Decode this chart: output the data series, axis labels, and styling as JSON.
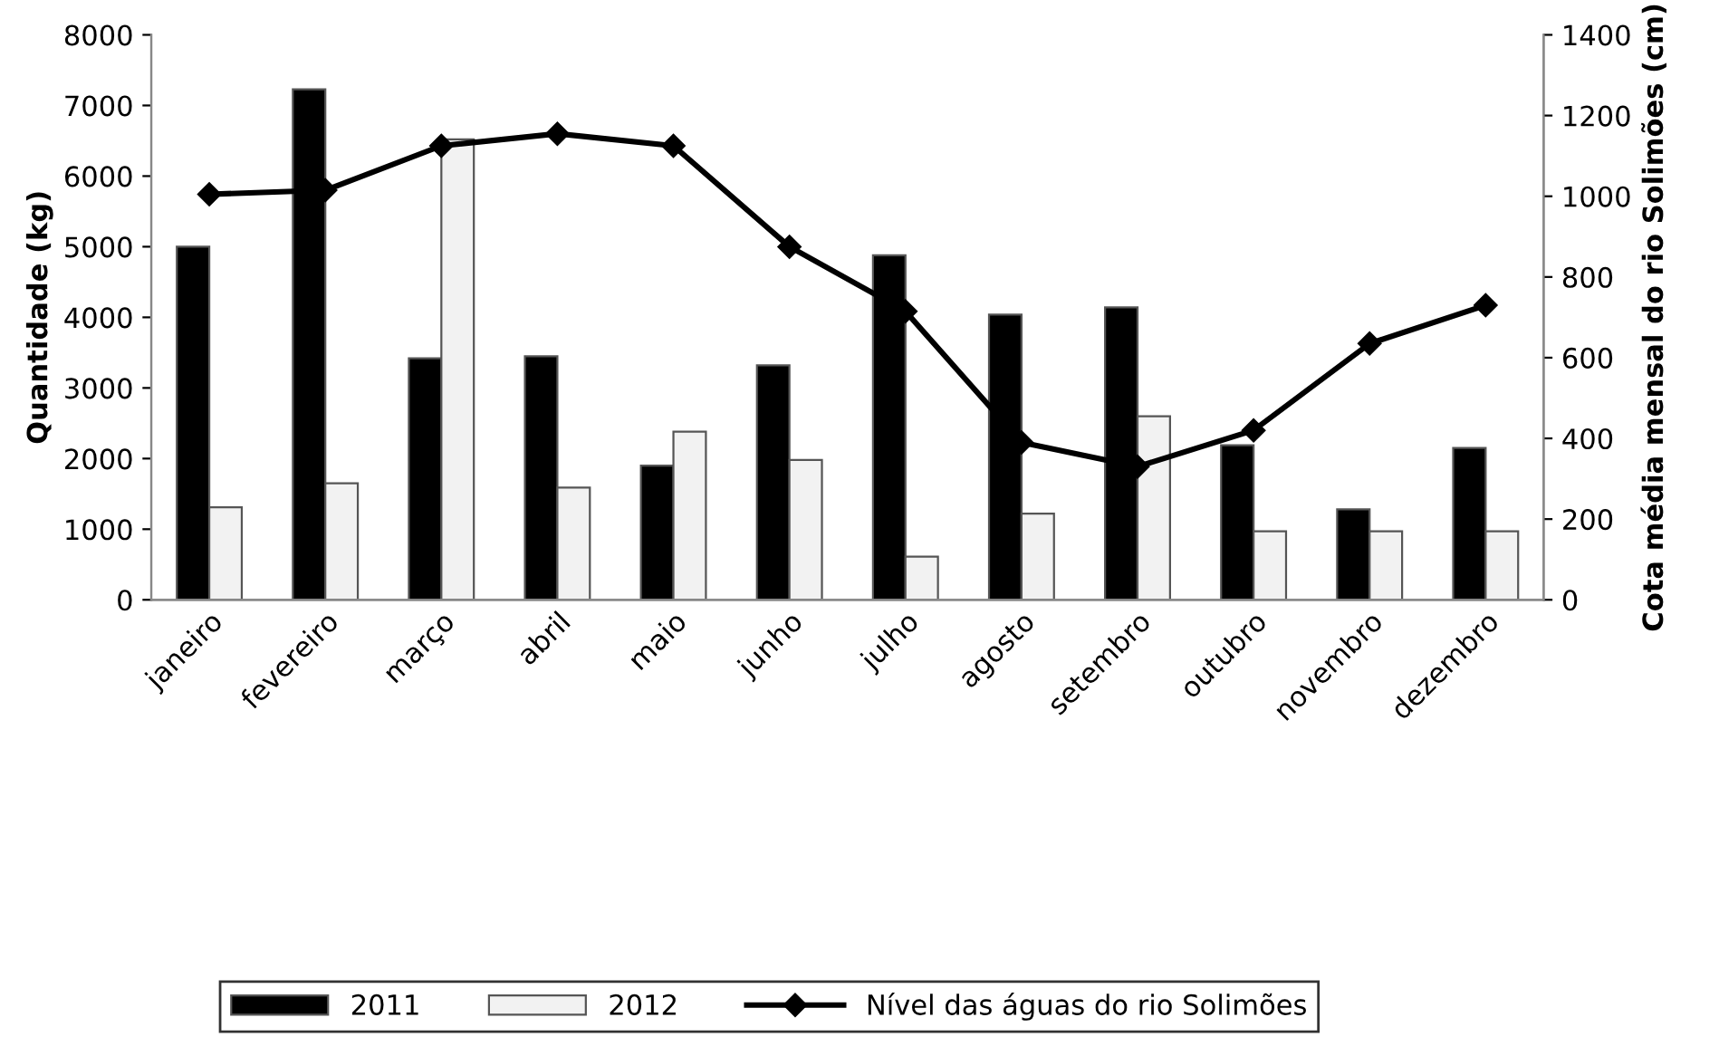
{
  "chart_data": {
    "type": "bar",
    "ylabel": "Quantidade (kg)",
    "y2label": "Cota média mensal do rio Solimões (cm)",
    "categories": [
      "janeiro",
      "fevereiro",
      "março",
      "abril",
      "maio",
      "junho",
      "julho",
      "agosto",
      "setembro",
      "outubro",
      "novembro",
      "dezembro"
    ],
    "series": [
      {
        "name": "2011",
        "color": "#000000",
        "values": [
          5000,
          7230,
          3420,
          3450,
          1900,
          3320,
          4880,
          4040,
          4140,
          2190,
          1280,
          2150
        ]
      },
      {
        "name": "2012",
        "color": "#f2f2f2",
        "values": [
          1310,
          1650,
          6520,
          1590,
          2380,
          1980,
          610,
          1220,
          2600,
          970,
          970,
          970
        ]
      },
      {
        "name": "Nível das águas do rio Solimões",
        "type": "line",
        "axis": "y2",
        "color": "#000000",
        "marker": "diamond",
        "values": [
          1005,
          1015,
          1125,
          1155,
          1125,
          875,
          715,
          390,
          330,
          420,
          635,
          730
        ]
      }
    ],
    "ylim": [
      0,
      8000
    ],
    "yticks": [
      0,
      1000,
      2000,
      3000,
      4000,
      5000,
      6000,
      7000,
      8000
    ],
    "y2lim": [
      0,
      1400
    ],
    "y2ticks": [
      0,
      200,
      400,
      600,
      800,
      1000,
      1200,
      1400
    ],
    "grid": false,
    "legend": "bottom"
  }
}
